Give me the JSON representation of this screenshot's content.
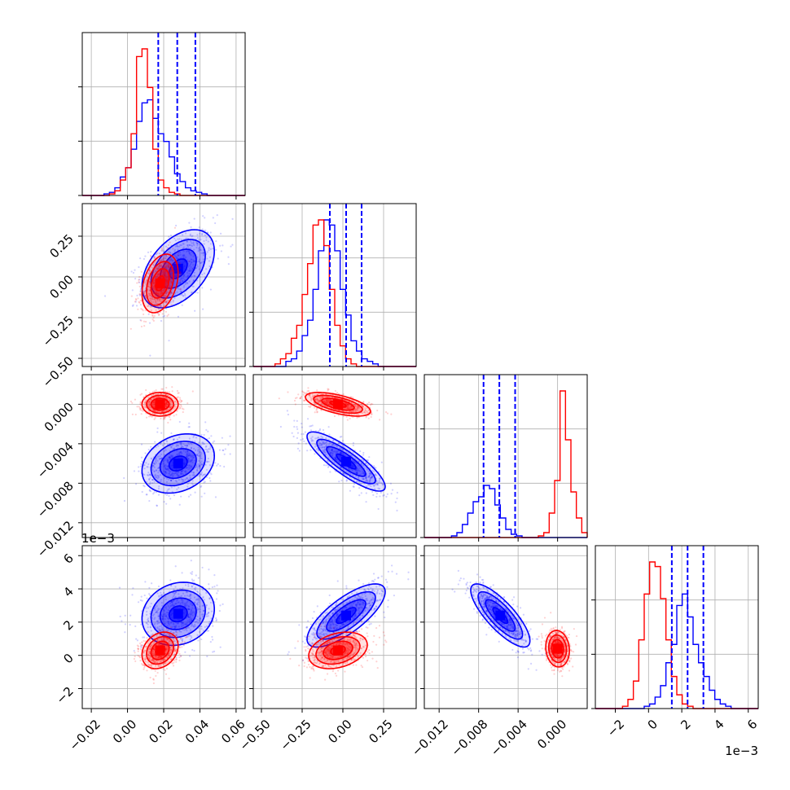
{
  "chart_data": {
    "type": "corner",
    "colors": {
      "run_a": "#0000ff",
      "run_b": "#ff0000"
    },
    "grid": true,
    "quantile_lines": {
      "style": "dashed",
      "color": "#0000ff",
      "of": "run_a"
    },
    "params": [
      {
        "range": [
          -0.025,
          0.065
        ],
        "ticks": [
          -0.02,
          0.0,
          0.02,
          0.04,
          0.06
        ],
        "tick_labels": [
          "−0.02",
          "0.00",
          "0.02",
          "0.04",
          "0.06"
        ],
        "offset": ""
      },
      {
        "range": [
          -0.55,
          0.45
        ],
        "ticks": [
          -0.5,
          -0.25,
          0.0,
          0.25
        ],
        "tick_labels": [
          "−0.50",
          "−0.25",
          "0.00",
          "0.25"
        ],
        "offset": ""
      },
      {
        "range": [
          -0.0135,
          0.003
        ],
        "ticks": [
          -0.012,
          -0.008,
          -0.004,
          0.0
        ],
        "tick_labels": [
          "−0.012",
          "−0.008",
          "−0.004",
          "0.000"
        ],
        "offset": ""
      },
      {
        "range": [
          -3.2,
          6.6
        ],
        "ticks": [
          -2,
          0,
          2,
          4,
          6
        ],
        "tick_labels": [
          "−2",
          "0",
          "2",
          "4",
          "6"
        ],
        "offset": "1e−3"
      }
    ],
    "quantiles_run_a": [
      [
        0.017,
        0.0275,
        0.0375
      ],
      [
        -0.08,
        0.02,
        0.115
      ],
      [
        -0.0075,
        -0.0059,
        -0.0043
      ],
      [
        1.4,
        2.35,
        3.3
      ]
    ],
    "marginals": [
      {
        "bins": [
          -0.025,
          0.065,
          30
        ],
        "run_a": [
          0,
          0,
          0,
          0,
          1,
          2,
          5,
          12,
          18,
          30,
          48,
          60,
          62,
          50,
          40,
          35,
          25,
          14,
          9,
          5,
          3,
          2,
          1,
          0,
          0,
          0,
          0,
          0,
          0,
          0
        ],
        "run_b": [
          0,
          0,
          0,
          0,
          0,
          1,
          3,
          10,
          18,
          40,
          90,
          95,
          70,
          30,
          10,
          5,
          2,
          1,
          0,
          0,
          0,
          0,
          0,
          0,
          0,
          0,
          0,
          0,
          0,
          0
        ]
      },
      {
        "bins": [
          -0.55,
          0.45,
          30
        ],
        "run_a": [
          0,
          0,
          0,
          0,
          0,
          0,
          2,
          3,
          6,
          12,
          18,
          30,
          45,
          57,
          55,
          45,
          30,
          20,
          10,
          6,
          3,
          2,
          1,
          0,
          0,
          0,
          0,
          0,
          0,
          0
        ],
        "run_b": [
          0,
          0,
          0,
          0,
          1,
          3,
          5,
          11,
          16,
          28,
          40,
          55,
          57,
          47,
          30,
          16,
          8,
          3,
          1,
          0,
          0,
          0,
          0,
          0,
          0,
          0,
          0,
          0,
          0,
          0
        ]
      },
      {
        "bins": [
          -0.0135,
          0.003,
          30
        ],
        "run_a": [
          0,
          0,
          0,
          0,
          0,
          1,
          3,
          8,
          15,
          22,
          25,
          32,
          30,
          20,
          12,
          5,
          2,
          1,
          0,
          0,
          0,
          0,
          0,
          0,
          0,
          0,
          0,
          0,
          0,
          0
        ],
        "run_b": [
          0,
          0,
          0,
          0,
          0,
          0,
          0,
          0,
          0,
          0,
          0,
          0,
          0,
          0,
          0,
          0,
          0,
          0,
          0,
          0,
          0,
          1,
          3,
          15,
          35,
          90,
          60,
          28,
          12,
          3
        ]
      },
      {
        "bins": [
          -3.2,
          6.6,
          30
        ],
        "run_a": [
          0,
          0,
          0,
          0,
          0,
          0,
          0,
          0,
          0,
          1,
          2,
          5,
          10,
          20,
          28,
          45,
          50,
          40,
          28,
          20,
          14,
          8,
          4,
          2,
          1,
          0,
          0,
          0,
          0,
          0
        ],
        "run_b": [
          0,
          0,
          0,
          0,
          0,
          1,
          4,
          12,
          30,
          50,
          64,
          62,
          48,
          30,
          14,
          6,
          2,
          1,
          0,
          0,
          0,
          0,
          0,
          0,
          0,
          0,
          0,
          0,
          0,
          0
        ]
      }
    ],
    "joint": [
      {
        "x": 0,
        "y": 1,
        "run_a": {
          "center": [
            0.028,
            0.05
          ],
          "sigma": [
            0.01,
            0.12
          ],
          "rho": 0.45
        },
        "run_b": {
          "center": [
            0.018,
            -0.04
          ],
          "sigma": [
            0.005,
            0.09
          ],
          "rho": 0.35
        }
      },
      {
        "x": 0,
        "y": 2,
        "run_a": {
          "center": [
            0.028,
            -0.006
          ],
          "sigma": [
            0.01,
            0.0015
          ],
          "rho": 0.25
        },
        "run_b": {
          "center": [
            0.018,
            0.0
          ],
          "sigma": [
            0.005,
            0.0006
          ],
          "rho": 0.0
        }
      },
      {
        "x": 1,
        "y": 2,
        "run_a": {
          "center": [
            0.02,
            -0.0058
          ],
          "sigma": [
            0.12,
            0.0015
          ],
          "rho": -0.85
        },
        "run_b": {
          "center": [
            -0.03,
            0.0
          ],
          "sigma": [
            0.1,
            0.0006
          ],
          "rho": -0.6
        }
      },
      {
        "x": 0,
        "y": 3,
        "run_a": {
          "center": [
            0.028,
            2.5
          ],
          "sigma": [
            0.01,
            0.95
          ],
          "rho": 0.15
        },
        "run_b": {
          "center": [
            0.018,
            0.3
          ],
          "sigma": [
            0.005,
            0.55
          ],
          "rho": 0.25
        }
      },
      {
        "x": 1,
        "y": 3,
        "run_a": {
          "center": [
            0.02,
            2.4
          ],
          "sigma": [
            0.12,
            0.95
          ],
          "rho": 0.75
        },
        "run_b": {
          "center": [
            -0.03,
            0.3
          ],
          "sigma": [
            0.09,
            0.55
          ],
          "rho": 0.3
        }
      },
      {
        "x": 2,
        "y": 3,
        "run_a": {
          "center": [
            -0.0058,
            2.4
          ],
          "sigma": [
            0.0015,
            0.95
          ],
          "rho": -0.8
        },
        "run_b": {
          "center": [
            0.0,
            0.4
          ],
          "sigma": [
            0.0006,
            0.55
          ],
          "rho": -0.1
        }
      }
    ]
  }
}
